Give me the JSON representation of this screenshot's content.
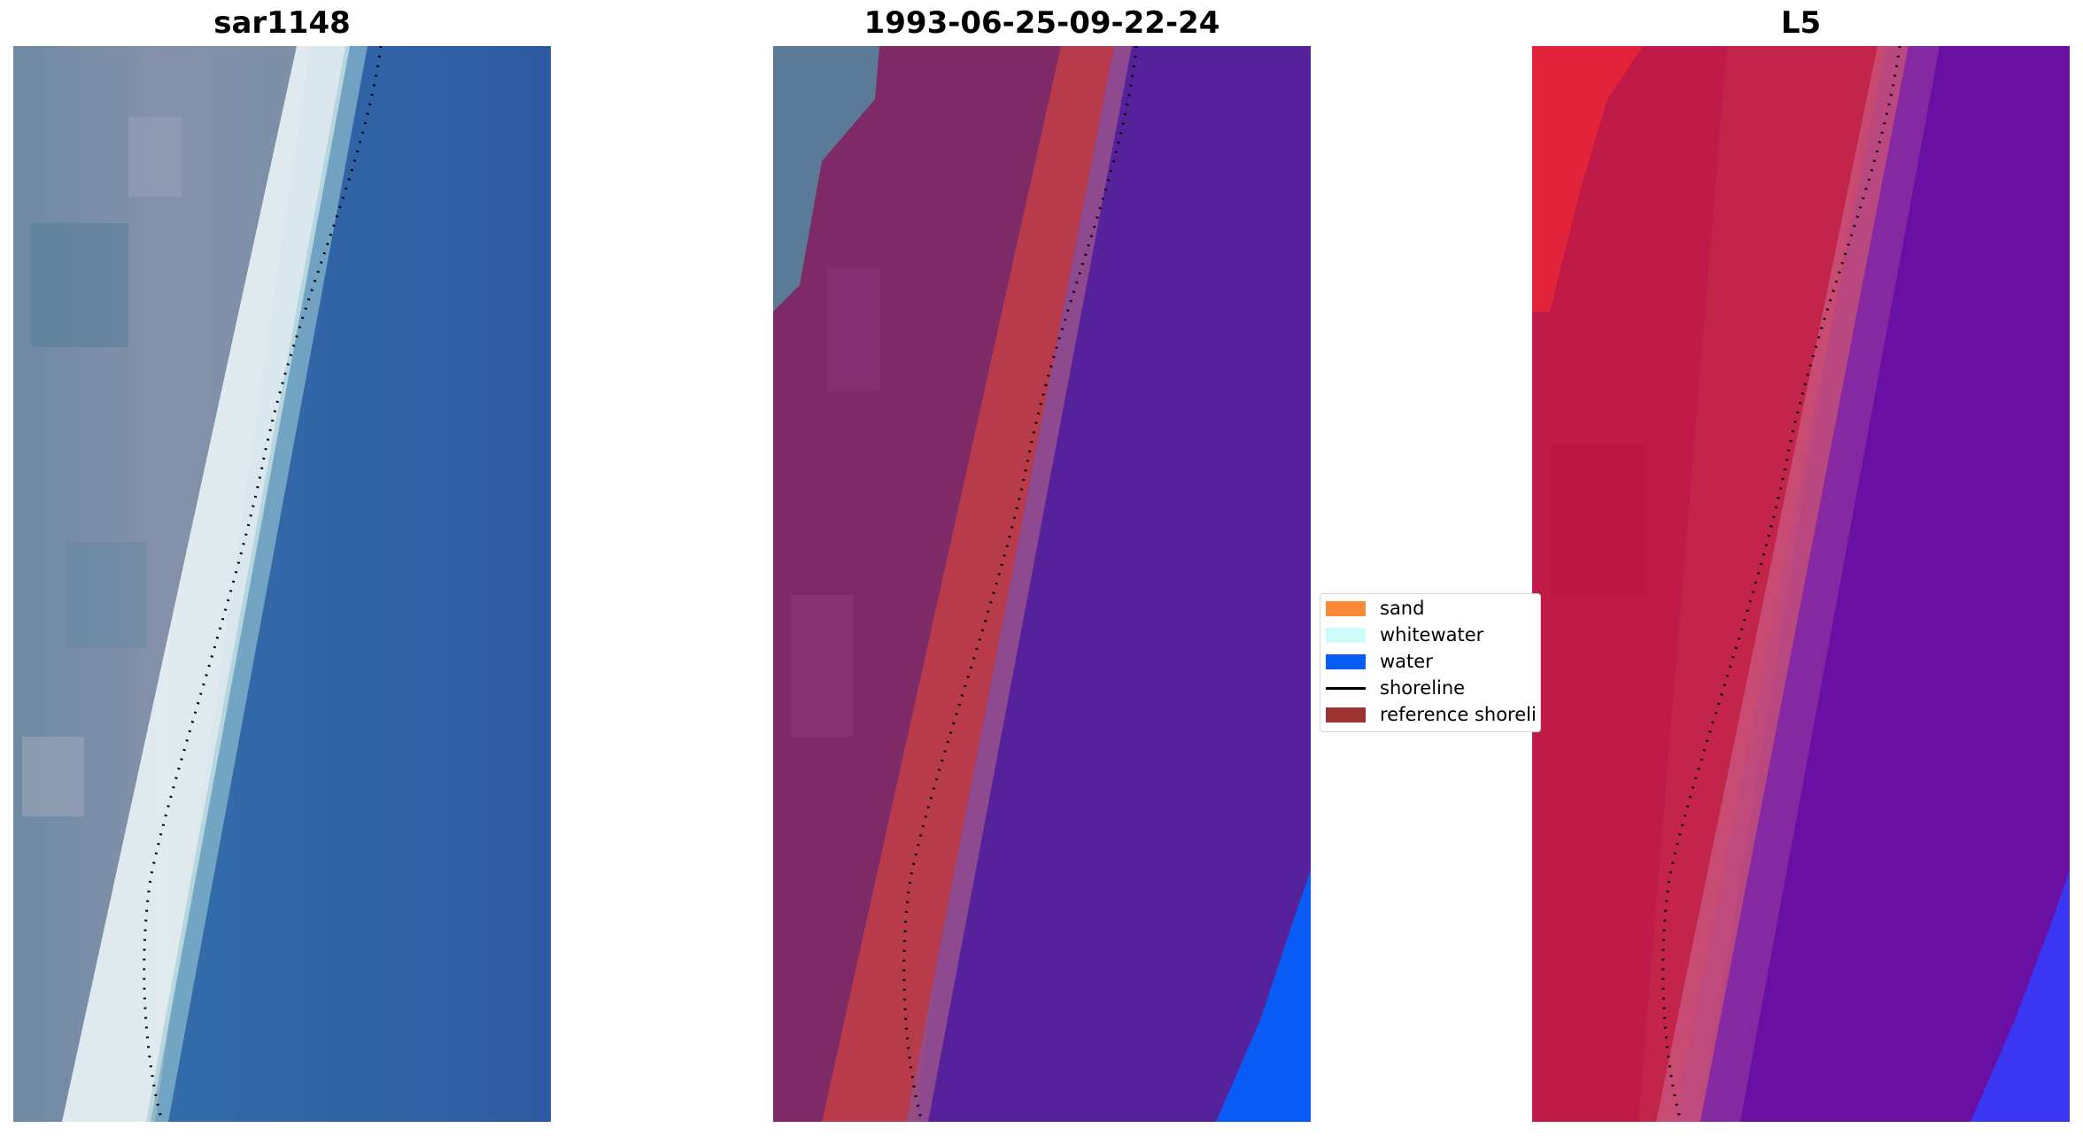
{
  "panels": [
    {
      "title": "sar1148"
    },
    {
      "title": "1993-06-25-09-22-24"
    },
    {
      "title": "L5"
    }
  ],
  "legend": {
    "items": [
      {
        "label": "sand",
        "color": "#f88a3a",
        "kind": "patch"
      },
      {
        "label": "whitewater",
        "color": "#cffcfb",
        "kind": "patch"
      },
      {
        "label": "water",
        "color": "#0a5cf7",
        "kind": "patch"
      },
      {
        "label": "shoreline",
        "color": "#000000",
        "kind": "line"
      },
      {
        "label": "reference shoreli",
        "color": "#9b3332",
        "kind": "patch"
      }
    ]
  },
  "colors": {
    "rgb_sand": "#8591ab",
    "rgb_white": "#e8f2f4",
    "rgb_water": "#2f63a8",
    "class_land": "#7e2a66",
    "class_ref": "#b83b4c",
    "class_water": "#56229b",
    "class_water_bright": "#0a5cf7",
    "index_red": "#e3233a",
    "index_land": "#c01a48",
    "index_water": "#6a0fa4",
    "index_water_bright": "#3b36f2"
  }
}
